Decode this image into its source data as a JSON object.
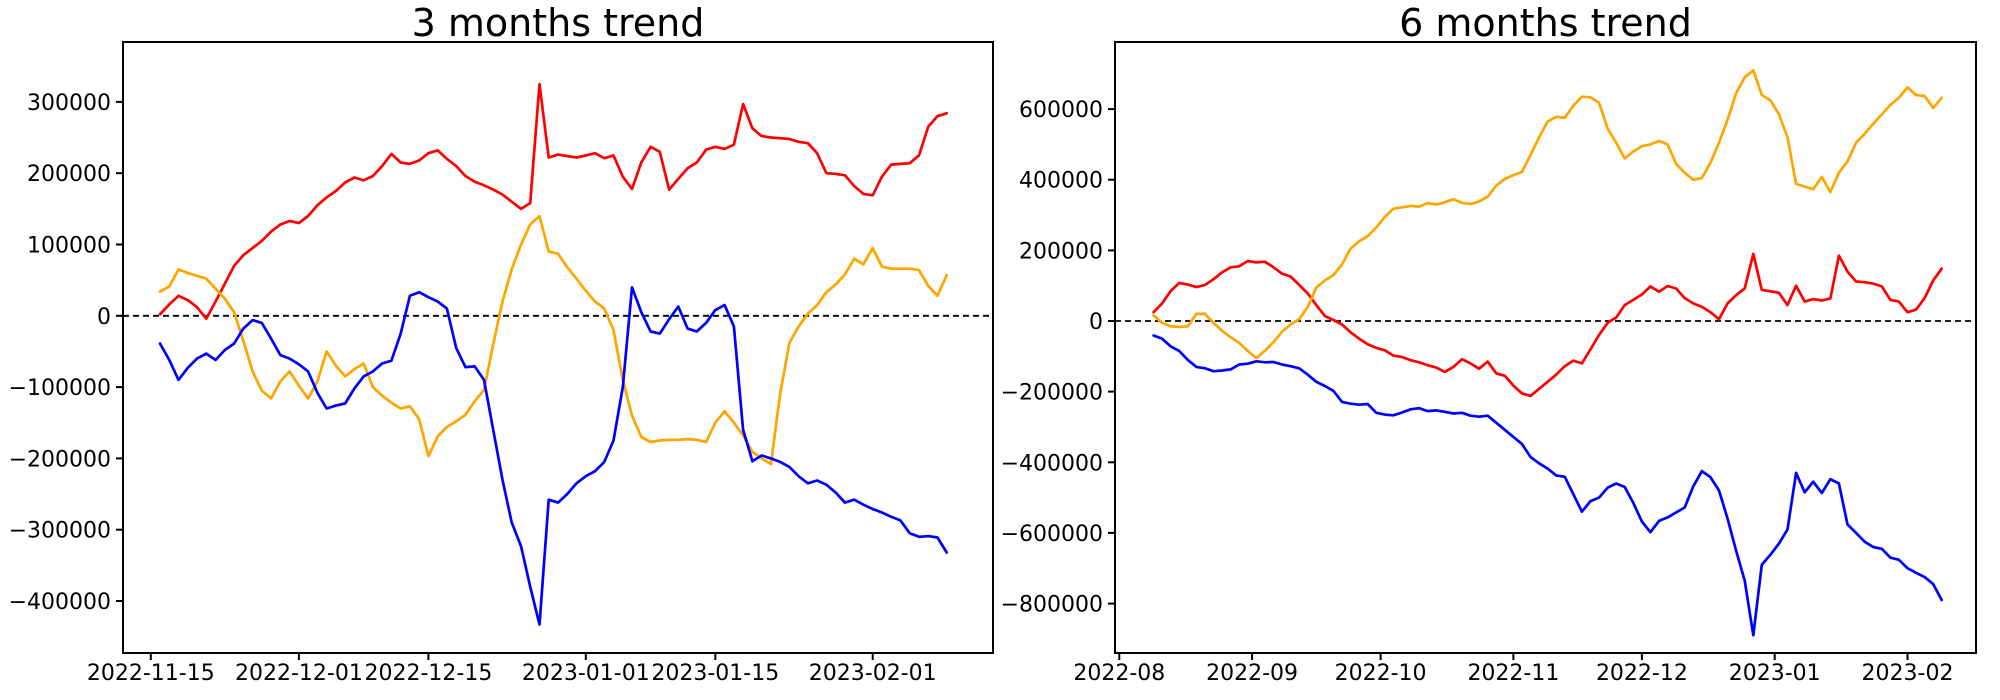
{
  "figure": {
    "background": "#ffffff"
  },
  "chart_data": [
    {
      "type": "line",
      "title": "3 months trend",
      "xlabel": "",
      "ylabel": "",
      "grid": false,
      "legend": "none",
      "zero_line": true,
      "xlim": [
        "2022-11-12",
        "2023-02-14"
      ],
      "ylim": [
        -473000,
        384000
      ],
      "xticks": [
        "2022-11-15",
        "2022-12-01",
        "2022-12-15",
        "2023-01-01",
        "2023-01-15",
        "2023-02-01"
      ],
      "xticklabels": [
        "2022-11-15",
        "2022-12-01",
        "2022-12-15",
        "2023-01-01",
        "2023-01-15",
        "2023-02-01"
      ],
      "yticks": [
        300000,
        200000,
        100000,
        0,
        -100000,
        -200000,
        -300000,
        -400000
      ],
      "yticklabels": [
        "300000",
        "200000",
        "100000",
        "0",
        "−100000",
        "−200000",
        "−300000",
        "−400000"
      ],
      "x": [
        "2022-11-16",
        "2022-11-17",
        "2022-11-18",
        "2022-11-19",
        "2022-11-20",
        "2022-11-21",
        "2022-11-22",
        "2022-11-23",
        "2022-11-24",
        "2022-11-25",
        "2022-11-26",
        "2022-11-27",
        "2022-11-28",
        "2022-11-29",
        "2022-11-30",
        "2022-12-01",
        "2022-12-02",
        "2022-12-03",
        "2022-12-04",
        "2022-12-05",
        "2022-12-06",
        "2022-12-07",
        "2022-12-08",
        "2022-12-09",
        "2022-12-10",
        "2022-12-11",
        "2022-12-12",
        "2022-12-13",
        "2022-12-14",
        "2022-12-15",
        "2022-12-16",
        "2022-12-17",
        "2022-12-18",
        "2022-12-19",
        "2022-12-20",
        "2022-12-21",
        "2022-12-22",
        "2022-12-23",
        "2022-12-24",
        "2022-12-25",
        "2022-12-26",
        "2022-12-27",
        "2022-12-28",
        "2022-12-29",
        "2022-12-30",
        "2022-12-31",
        "2023-01-01",
        "2023-01-02",
        "2023-01-03",
        "2023-01-04",
        "2023-01-05",
        "2023-01-06",
        "2023-01-07",
        "2023-01-08",
        "2023-01-09",
        "2023-01-10",
        "2023-01-11",
        "2023-01-12",
        "2023-01-13",
        "2023-01-14",
        "2023-01-15",
        "2023-01-16",
        "2023-01-17",
        "2023-01-18",
        "2023-01-19",
        "2023-01-20",
        "2023-01-21",
        "2023-01-22",
        "2023-01-23",
        "2023-01-24",
        "2023-01-25",
        "2023-01-26",
        "2023-01-27",
        "2023-01-28",
        "2023-01-29",
        "2023-01-30",
        "2023-01-31",
        "2023-02-01",
        "2023-02-02",
        "2023-02-03",
        "2023-02-04",
        "2023-02-05",
        "2023-02-06",
        "2023-02-07",
        "2023-02-08",
        "2023-02-09"
      ],
      "series": [
        {
          "name": "red",
          "color": "#ff0000",
          "values": [
            2000,
            16000,
            28000,
            22000,
            12000,
            -4000,
            20000,
            45000,
            70000,
            85000,
            95000,
            105000,
            118000,
            128000,
            133000,
            130000,
            140000,
            155000,
            166000,
            175000,
            187000,
            194000,
            190000,
            196000,
            210000,
            227000,
            215000,
            213000,
            218000,
            228000,
            232000,
            220000,
            210000,
            196000,
            188000,
            183000,
            177000,
            170000,
            160000,
            150000,
            158000,
            325000,
            222000,
            226000,
            224000,
            222000,
            225000,
            228000,
            221000,
            225000,
            195000,
            178000,
            215000,
            237000,
            230000,
            177000,
            192000,
            207000,
            215000,
            233000,
            237000,
            234000,
            240000,
            297000,
            263000,
            252000,
            250000,
            249000,
            248000,
            244000,
            242000,
            228000,
            200000,
            199000,
            197000,
            182000,
            171000,
            169000,
            195000,
            212000,
            213000,
            214000,
            225000,
            265000,
            280000,
            284000
          ]
        },
        {
          "name": "orange",
          "color": "#ffa500",
          "values": [
            34000,
            41000,
            65000,
            60000,
            56000,
            52000,
            38000,
            24000,
            5000,
            -35000,
            -78000,
            -105000,
            -116000,
            -92000,
            -78000,
            -98000,
            -116000,
            -92000,
            -50000,
            -70000,
            -85000,
            -75000,
            -67000,
            -100000,
            -112000,
            -122000,
            -130000,
            -127000,
            -145000,
            -197000,
            -169000,
            -156000,
            -148000,
            -139000,
            -120000,
            -104000,
            -40000,
            20000,
            65000,
            100000,
            128000,
            140000,
            90000,
            87000,
            68000,
            52000,
            35000,
            20000,
            10000,
            -20000,
            -90000,
            -140000,
            -170000,
            -177000,
            -175000,
            -174000,
            -174000,
            -173000,
            -174000,
            -177000,
            -150000,
            -134000,
            -150000,
            -168000,
            -191000,
            -200000,
            -208000,
            -110000,
            -38000,
            -15000,
            3000,
            15000,
            33000,
            44000,
            58000,
            80000,
            72000,
            95000,
            69000,
            66000,
            66000,
            66000,
            64000,
            42000,
            28000,
            57000
          ]
        },
        {
          "name": "blue",
          "color": "#0000ff",
          "values": [
            -39000,
            -62000,
            -90000,
            -73000,
            -60000,
            -53000,
            -62000,
            -48000,
            -39000,
            -18000,
            -6000,
            -10000,
            -32000,
            -55000,
            -60000,
            -68000,
            -78000,
            -108000,
            -130000,
            -126000,
            -123000,
            -102000,
            -85000,
            -78000,
            -67000,
            -63000,
            -25000,
            28000,
            33000,
            26000,
            20000,
            10000,
            -45000,
            -72000,
            -71000,
            -90000,
            -160000,
            -230000,
            -290000,
            -323000,
            -380000,
            -433000,
            -258000,
            -262000,
            -250000,
            -235000,
            -225000,
            -218000,
            -205000,
            -175000,
            -100000,
            40000,
            5000,
            -22000,
            -25000,
            -5000,
            13000,
            -18000,
            -22000,
            -10000,
            8000,
            15000,
            -15000,
            -160000,
            -204000,
            -196000,
            -200000,
            -205000,
            -212000,
            -225000,
            -235000,
            -231000,
            -237000,
            -248000,
            -262000,
            -258000,
            -265000,
            -271000,
            -276000,
            -282000,
            -287000,
            -305000,
            -310000,
            -309000,
            -311000,
            -332000
          ]
        }
      ]
    },
    {
      "type": "line",
      "title": "6 months trend",
      "xlabel": "",
      "ylabel": "",
      "grid": false,
      "legend": "none",
      "zero_line": true,
      "xlim": [
        "2022-07-31",
        "2023-02-17"
      ],
      "ylim": [
        -940000,
        790000
      ],
      "xticks": [
        "2022-08-01",
        "2022-09-01",
        "2022-10-01",
        "2022-11-01",
        "2022-12-01",
        "2023-01-01",
        "2023-02-01"
      ],
      "xticklabels": [
        "2022-08",
        "2022-09",
        "2022-10",
        "2022-11",
        "2022-12",
        "2023-01",
        "2023-02"
      ],
      "yticks": [
        600000,
        400000,
        200000,
        0,
        -200000,
        -400000,
        -600000,
        -800000
      ],
      "yticklabels": [
        "600000",
        "400000",
        "200000",
        "0",
        "−200000",
        "−400000",
        "−600000",
        "−800000"
      ],
      "x": [
        "2022-08-09",
        "2022-08-11",
        "2022-08-13",
        "2022-08-15",
        "2022-08-17",
        "2022-08-19",
        "2022-08-21",
        "2022-08-23",
        "2022-08-25",
        "2022-08-27",
        "2022-08-29",
        "2022-08-31",
        "2022-09-02",
        "2022-09-04",
        "2022-09-06",
        "2022-09-08",
        "2022-09-10",
        "2022-09-12",
        "2022-09-14",
        "2022-09-16",
        "2022-09-18",
        "2022-09-20",
        "2022-09-22",
        "2022-09-24",
        "2022-09-26",
        "2022-09-28",
        "2022-09-30",
        "2022-10-02",
        "2022-10-04",
        "2022-10-06",
        "2022-10-08",
        "2022-10-10",
        "2022-10-12",
        "2022-10-14",
        "2022-10-16",
        "2022-10-18",
        "2022-10-20",
        "2022-10-22",
        "2022-10-24",
        "2022-10-26",
        "2022-10-28",
        "2022-10-30",
        "2022-11-01",
        "2022-11-03",
        "2022-11-05",
        "2022-11-07",
        "2022-11-09",
        "2022-11-11",
        "2022-11-13",
        "2022-11-15",
        "2022-11-17",
        "2022-11-19",
        "2022-11-21",
        "2022-11-23",
        "2022-11-25",
        "2022-11-27",
        "2022-11-29",
        "2022-12-01",
        "2022-12-03",
        "2022-12-05",
        "2022-12-07",
        "2022-12-09",
        "2022-12-11",
        "2022-12-13",
        "2022-12-15",
        "2022-12-17",
        "2022-12-19",
        "2022-12-21",
        "2022-12-23",
        "2022-12-25",
        "2022-12-27",
        "2022-12-29",
        "2022-12-31",
        "2023-01-02",
        "2023-01-04",
        "2023-01-06",
        "2023-01-08",
        "2023-01-10",
        "2023-01-12",
        "2023-01-14",
        "2023-01-16",
        "2023-01-18",
        "2023-01-20",
        "2023-01-22",
        "2023-01-24",
        "2023-01-26",
        "2023-01-28",
        "2023-01-30",
        "2023-02-01",
        "2023-02-03",
        "2023-02-05",
        "2023-02-07",
        "2023-02-09"
      ],
      "series": [
        {
          "name": "red",
          "color": "#ff0000",
          "values": [
            25000,
            50000,
            85000,
            108000,
            103000,
            96000,
            102000,
            118000,
            138000,
            152000,
            155000,
            170000,
            166000,
            168000,
            152000,
            134000,
            126000,
            102000,
            78000,
            45000,
            14000,
            3000,
            -10000,
            -32000,
            -50000,
            -66000,
            -76000,
            -83000,
            -98000,
            -102000,
            -111000,
            -117000,
            -125000,
            -132000,
            -144000,
            -130000,
            -108000,
            -120000,
            -135000,
            -115000,
            -148000,
            -155000,
            -183000,
            -205000,
            -212000,
            -192000,
            -172000,
            -152000,
            -128000,
            -112000,
            -120000,
            -80000,
            -40000,
            -5000,
            10000,
            45000,
            60000,
            75000,
            98000,
            83000,
            99000,
            92000,
            65000,
            50000,
            40000,
            25000,
            5000,
            50000,
            73000,
            92000,
            190000,
            88000,
            84000,
            80000,
            45000,
            100000,
            55000,
            62000,
            58000,
            64000,
            185000,
            140000,
            112000,
            110000,
            106000,
            98000,
            60000,
            55000,
            25000,
            32000,
            65000,
            115000,
            148000
          ]
        },
        {
          "name": "orange",
          "color": "#ffa500",
          "values": [
            16000,
            -5000,
            -15000,
            -17000,
            -15000,
            20000,
            20000,
            -5000,
            -28000,
            -46000,
            -62000,
            -85000,
            -105000,
            -84000,
            -60000,
            -30000,
            -10000,
            5000,
            40000,
            95000,
            115000,
            130000,
            160000,
            205000,
            226000,
            240000,
            265000,
            295000,
            318000,
            322000,
            326000,
            324000,
            334000,
            330000,
            336000,
            345000,
            335000,
            331000,
            338000,
            352000,
            383000,
            402000,
            413000,
            422000,
            470000,
            520000,
            565000,
            578000,
            575000,
            610000,
            635000,
            633000,
            618000,
            545000,
            505000,
            460000,
            480000,
            495000,
            500000,
            510000,
            500000,
            445000,
            420000,
            400000,
            405000,
            448000,
            505000,
            570000,
            645000,
            690000,
            710000,
            640000,
            625000,
            585000,
            520000,
            388000,
            381000,
            373000,
            408000,
            365000,
            420000,
            452000,
            505000,
            530000,
            558000,
            585000,
            612000,
            632000,
            662000,
            640000,
            637000,
            603000,
            632000
          ]
        },
        {
          "name": "blue",
          "color": "#0000ff",
          "values": [
            -41000,
            -50000,
            -72000,
            -85000,
            -110000,
            -130000,
            -134000,
            -142000,
            -140000,
            -137000,
            -123000,
            -121000,
            -114000,
            -117000,
            -116000,
            -123000,
            -128000,
            -134000,
            -152000,
            -172000,
            -184000,
            -198000,
            -229000,
            -234000,
            -237000,
            -235000,
            -260000,
            -265000,
            -267000,
            -259000,
            -250000,
            -247000,
            -255000,
            -253000,
            -257000,
            -262000,
            -260000,
            -268000,
            -271000,
            -268000,
            -288000,
            -308000,
            -328000,
            -348000,
            -385000,
            -403000,
            -418000,
            -437000,
            -441000,
            -490000,
            -540000,
            -510000,
            -500000,
            -472000,
            -460000,
            -470000,
            -515000,
            -568000,
            -598000,
            -566000,
            -556000,
            -542000,
            -528000,
            -468000,
            -425000,
            -442000,
            -480000,
            -560000,
            -650000,
            -735000,
            -890000,
            -690000,
            -662000,
            -630000,
            -590000,
            -430000,
            -485000,
            -455000,
            -487000,
            -448000,
            -460000,
            -576000,
            -600000,
            -625000,
            -640000,
            -645000,
            -670000,
            -676000,
            -700000,
            -713000,
            -725000,
            -745000,
            -790000
          ]
        }
      ]
    }
  ]
}
